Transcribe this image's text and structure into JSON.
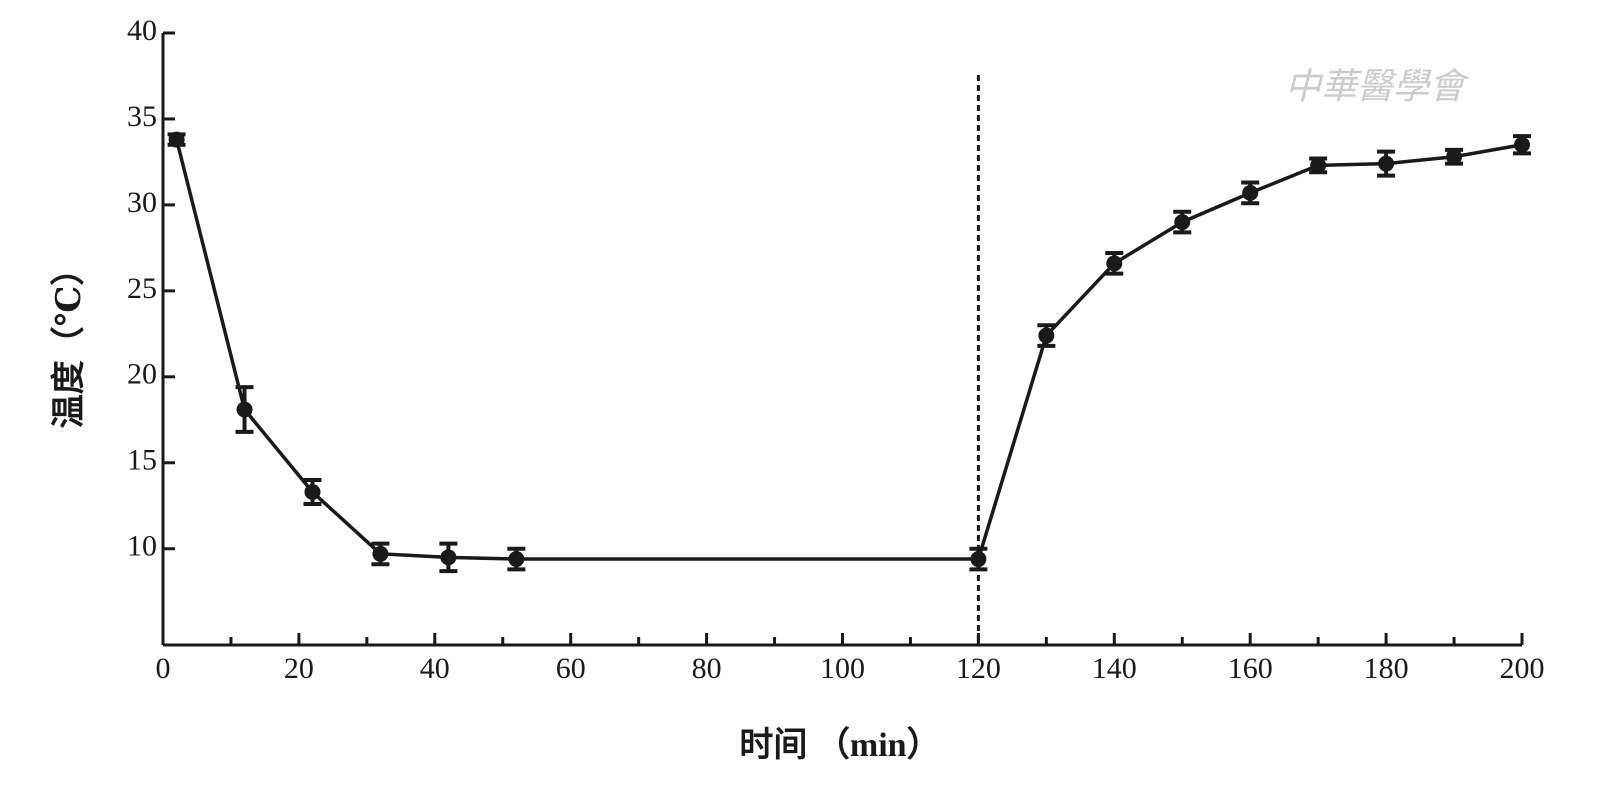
{
  "chart_data": {
    "type": "line",
    "xlabel": "时间 （min）",
    "ylabel": "温度（℃）",
    "watermark": "中華醫學會",
    "x": [
      2,
      12,
      22,
      32,
      42,
      52,
      120,
      130,
      140,
      150,
      160,
      170,
      180,
      190,
      200
    ],
    "series": [
      {
        "color": "#1a1a1a",
        "values": [
          33.8,
          18.1,
          13.3,
          9.7,
          9.5,
          9.4,
          9.4,
          22.4,
          26.6,
          29.0,
          30.7,
          32.3,
          32.4,
          32.8,
          33.5
        ],
        "errors": [
          0.3,
          1.3,
          0.7,
          0.6,
          0.8,
          0.6,
          0.6,
          0.6,
          0.6,
          0.6,
          0.6,
          0.4,
          0.7,
          0.4,
          0.5
        ]
      }
    ],
    "reference_x": 120,
    "xlim": [
      0,
      200
    ],
    "xticks": [
      0,
      20,
      40,
      60,
      80,
      100,
      120,
      140,
      160,
      180,
      200
    ],
    "xticks_minor": [
      10,
      30,
      50,
      70,
      90,
      110,
      130,
      150,
      170,
      190
    ],
    "ylim": [
      4.4,
      40
    ],
    "yticks": [
      10,
      15,
      20,
      25,
      30,
      35,
      40
    ],
    "grid": false
  }
}
